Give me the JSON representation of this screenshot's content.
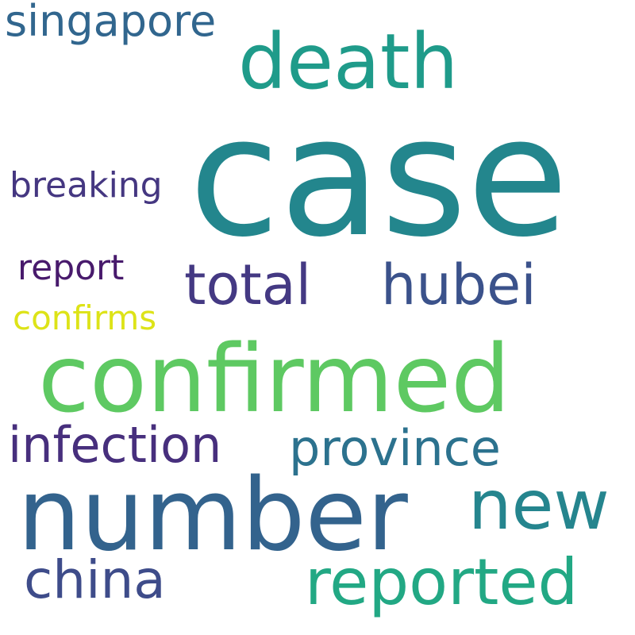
{
  "words": {
    "case": {
      "text": "case",
      "color": "#23868d"
    },
    "confirmed": {
      "text": "confirmed",
      "color": "#5ec962"
    },
    "number": {
      "text": "number",
      "color": "#33638d"
    },
    "death": {
      "text": "death",
      "color": "#1f9b8a"
    },
    "new": {
      "text": "new",
      "color": "#25858e"
    },
    "reported": {
      "text": "reported",
      "color": "#22a884"
    },
    "total": {
      "text": "total",
      "color": "#443983"
    },
    "hubei": {
      "text": "hubei",
      "color": "#3b528b"
    },
    "china": {
      "text": "china",
      "color": "#3e4c8a"
    },
    "province": {
      "text": "province",
      "color": "#2c728e"
    },
    "infection": {
      "text": "infection",
      "color": "#472f7d"
    },
    "singapore": {
      "text": "singapore",
      "color": "#31668e"
    },
    "breaking": {
      "text": "breaking",
      "color": "#453781"
    },
    "report": {
      "text": "report",
      "color": "#481a6c"
    },
    "confirms": {
      "text": "confirms",
      "color": "#dde318"
    }
  }
}
